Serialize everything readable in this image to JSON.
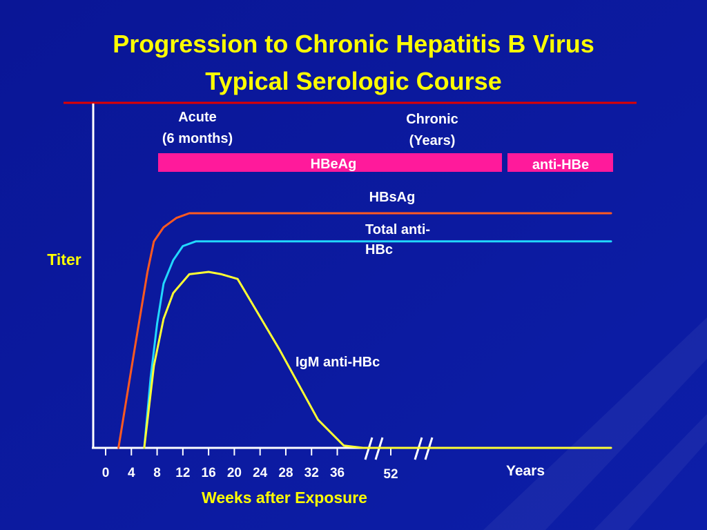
{
  "slide": {
    "title": "Progression to Chronic Hepatitis B Virus",
    "subtitle": "Typical Serologic Course"
  },
  "colors": {
    "background": "#0a1696",
    "title": "#ffff00",
    "rule": "#e00000",
    "axis": "#ffffff",
    "text": "#ffffff",
    "hbsag": "#ff5a20",
    "total_anti_hbc": "#22d8ff",
    "igm_anti_hbc": "#ffff33",
    "bar": "#ff1a9b"
  },
  "chart_data": {
    "type": "line",
    "xlabel": "Weeks after Exposure",
    "ylabel": "Titer",
    "x_ticks": [
      "0",
      "4",
      "8",
      "12",
      "16",
      "20",
      "24",
      "28",
      "32",
      "36",
      "52"
    ],
    "x_extra_label": "Years",
    "phases": [
      {
        "lines": [
          "Acute",
          "(6 months)"
        ]
      },
      {
        "lines": [
          "Chronic",
          "(Years)"
        ]
      }
    ],
    "bars": [
      {
        "label": "HBeAg"
      },
      {
        "label": "anti-HBe"
      }
    ],
    "series": [
      {
        "name": "HBsAg",
        "color": "#ff5a20",
        "points": [
          [
            2,
            0
          ],
          [
            4.5,
            0.42
          ],
          [
            6.5,
            0.75
          ],
          [
            7.5,
            0.88
          ],
          [
            9,
            0.94
          ],
          [
            11,
            0.98
          ],
          [
            13,
            1.0
          ],
          [
            17,
            1.0
          ],
          [
            "Years",
            1.0
          ]
        ]
      },
      {
        "name": "Total anti-HBc",
        "label_lines": [
          "Total anti-",
          "HBc"
        ],
        "color": "#22d8ff",
        "points": [
          [
            6,
            0
          ],
          [
            7,
            0.3
          ],
          [
            8,
            0.53
          ],
          [
            9,
            0.7
          ],
          [
            10.5,
            0.8
          ],
          [
            12,
            0.86
          ],
          [
            14,
            0.88
          ],
          [
            20,
            0.88
          ],
          [
            "Years",
            0.88
          ]
        ]
      },
      {
        "name": "IgM anti-HBc",
        "color": "#ffff33",
        "points": [
          [
            6,
            0
          ],
          [
            7.5,
            0.35
          ],
          [
            9,
            0.55
          ],
          [
            10.5,
            0.66
          ],
          [
            13,
            0.74
          ],
          [
            16,
            0.75
          ],
          [
            18,
            0.74
          ],
          [
            20.5,
            0.72
          ],
          [
            27,
            0.42
          ],
          [
            33,
            0.12
          ],
          [
            37,
            0.01
          ],
          [
            40,
            0
          ],
          [
            "Years",
            0
          ]
        ]
      }
    ]
  }
}
